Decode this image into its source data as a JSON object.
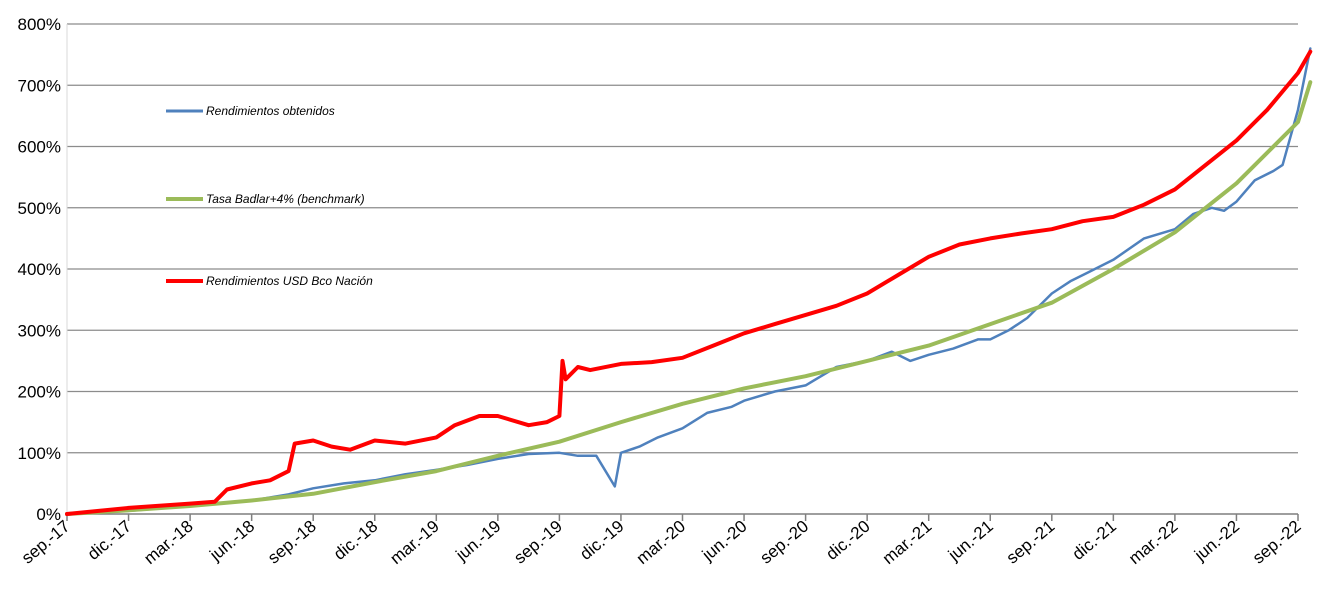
{
  "chart_data": {
    "type": "line",
    "title": "",
    "xlabel": "",
    "ylabel": "",
    "ylim": [
      0,
      800
    ],
    "y_ticks": [
      "0%",
      "100%",
      "200%",
      "300%",
      "400%",
      "500%",
      "600%",
      "700%",
      "800%"
    ],
    "x_ticks": [
      "sep.-17",
      "dic.-17",
      "mar.-18",
      "jun.-18",
      "sep.-18",
      "dic.-18",
      "mar.-19",
      "jun.-19",
      "sep.-19",
      "dic.-19",
      "mar.-20",
      "jun.-20",
      "sep.-20",
      "dic.-20",
      "mar.-21",
      "jun.-21",
      "sep.-21",
      "dic.-21",
      "mar.-22",
      "jun.-22",
      "sep.-22"
    ],
    "grid": "horizontal",
    "legend": "top-left",
    "series": [
      {
        "name": "Rendimientos obtenidos",
        "color": "#4f81bd",
        "x": [
          0,
          1,
          2,
          2.6,
          3,
          3.6,
          4,
          4.5,
          5,
          5.5,
          6,
          6.5,
          7,
          7.5,
          8,
          8.3,
          8.6,
          8.9,
          9,
          9.3,
          9.6,
          10,
          10.4,
          10.8,
          11,
          11.5,
          12,
          12.5,
          13,
          13.4,
          13.7,
          14,
          14.4,
          14.8,
          15,
          15.3,
          15.6,
          16,
          16.3,
          16.6,
          17,
          17.5,
          18,
          18.3,
          18.6,
          18.8,
          19,
          19.3,
          19.6,
          19.75,
          20,
          20.2
        ],
        "values": [
          0,
          5,
          13,
          18,
          22,
          32,
          42,
          50,
          55,
          65,
          72,
          80,
          90,
          98,
          100,
          95,
          95,
          45,
          100,
          110,
          125,
          140,
          165,
          175,
          185,
          200,
          210,
          240,
          250,
          265,
          250,
          260,
          270,
          285,
          285,
          300,
          320,
          360,
          380,
          395,
          415,
          450,
          465,
          490,
          500,
          495,
          510,
          545,
          560,
          570,
          660,
          760
        ]
      },
      {
        "name": "Tasa Badlar+4% (benchmark)",
        "color": "#9bbb59",
        "x": [
          0,
          1,
          2,
          3,
          4,
          5,
          6,
          7,
          8,
          9,
          10,
          11,
          12,
          13,
          14,
          15,
          16,
          17,
          18,
          19,
          20,
          20.2
        ],
        "values": [
          0,
          6,
          13,
          22,
          33,
          52,
          70,
          95,
          118,
          150,
          180,
          205,
          225,
          250,
          275,
          310,
          345,
          400,
          460,
          540,
          640,
          705
        ]
      },
      {
        "name": "Rendimientos USD Bco Nación",
        "color": "#ff0000",
        "x": [
          0,
          1,
          2,
          2.4,
          2.6,
          3,
          3.3,
          3.6,
          3.7,
          4,
          4.3,
          4.6,
          5,
          5.5,
          6,
          6.3,
          6.7,
          7,
          7.5,
          7.8,
          8,
          8.05,
          8.1,
          8.3,
          8.5,
          9,
          9.5,
          10,
          10.5,
          11,
          11.5,
          12,
          12.5,
          13,
          13.5,
          14,
          14.5,
          15,
          15.5,
          16,
          16.5,
          17,
          17.5,
          18,
          18.5,
          19,
          19.5,
          20,
          20.2
        ],
        "values": [
          0,
          10,
          17,
          20,
          40,
          50,
          55,
          70,
          115,
          120,
          110,
          105,
          120,
          115,
          125,
          145,
          160,
          160,
          145,
          150,
          160,
          250,
          220,
          240,
          235,
          245,
          248,
          255,
          275,
          295,
          310,
          325,
          340,
          360,
          390,
          420,
          440,
          450,
          458,
          465,
          478,
          485,
          505,
          530,
          570,
          610,
          660,
          720,
          755
        ]
      }
    ]
  }
}
